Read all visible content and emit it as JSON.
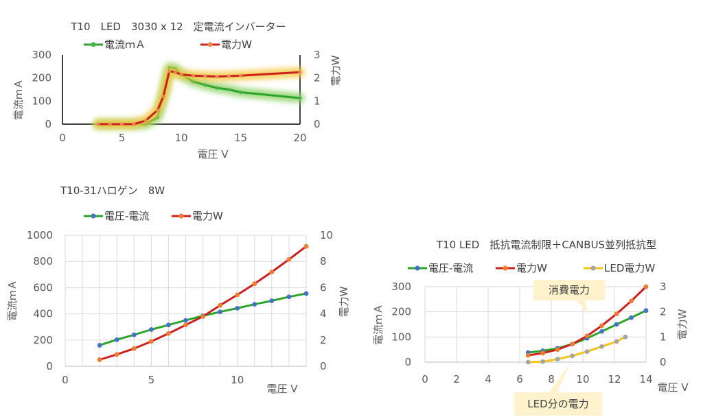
{
  "chart_data": [
    {
      "type": "line",
      "title": "T10　LED　3030 x 12　定電流インバーター",
      "xlabel": "電圧 V",
      "ylabel": "電流ｍＡ",
      "y2label": "電力W",
      "xlim": [
        0,
        20
      ],
      "ylim": [
        0,
        300
      ],
      "y2lim": [
        0,
        3
      ],
      "xticks": [
        "0",
        "5",
        "10",
        "15",
        "20"
      ],
      "yticks": [
        "0",
        "100",
        "200",
        "300"
      ],
      "y2ticks": [
        "0",
        "1",
        "2",
        "3"
      ],
      "grid": false,
      "legend_position": "top",
      "series": [
        {
          "name": "電流ｍＡ",
          "axis": "y",
          "color": "#2aa52a",
          "marker_color": "#4caf50",
          "glow": "#8fd46a",
          "x": [
            3,
            4,
            5,
            6,
            7,
            8,
            8.5,
            9,
            9.5,
            10,
            11,
            12,
            13,
            14,
            15,
            20
          ],
          "y": [
            0,
            0,
            0,
            0,
            0,
            30,
            130,
            245,
            240,
            215,
            185,
            170,
            157,
            150,
            138,
            113
          ]
        },
        {
          "name": "電力W",
          "axis": "y2",
          "color": "#cc1f1f",
          "marker_color": "#e98a4a",
          "glow": "#f5c842",
          "x": [
            3,
            4,
            5,
            6,
            7,
            8,
            8.5,
            9,
            9.5,
            10,
            11,
            12,
            13,
            14,
            15,
            20
          ],
          "y": [
            0,
            0,
            0,
            0,
            0.15,
            0.6,
            1.2,
            2.3,
            2.25,
            2.15,
            2.1,
            2.08,
            2.06,
            2.08,
            2.1,
            2.25
          ]
        }
      ]
    },
    {
      "type": "line",
      "title": "T10-31ハロゲン　8W",
      "xlabel": "電圧 V",
      "ylabel": "電流ｍＡ",
      "y2label": "電力W",
      "xlim": [
        0,
        14
      ],
      "ylim": [
        0,
        1000
      ],
      "y2lim": [
        0,
        10
      ],
      "xticks": [
        "0",
        "5",
        "10"
      ],
      "yticks": [
        "0",
        "200",
        "400",
        "600",
        "800",
        "1000"
      ],
      "y2ticks": [
        "0",
        "2",
        "4",
        "6",
        "8",
        "10"
      ],
      "grid": true,
      "legend_position": "top",
      "series": [
        {
          "name": "電圧-電流",
          "axis": "y",
          "color": "#2aa52a",
          "marker_color": "#4472c4",
          "x": [
            2,
            3,
            4,
            5,
            6,
            7,
            8,
            9,
            10,
            11,
            12,
            13,
            14
          ],
          "y": [
            160,
            203,
            240,
            280,
            315,
            350,
            385,
            415,
            443,
            473,
            500,
            530,
            555
          ]
        },
        {
          "name": "電力W",
          "axis": "y2",
          "color": "#cc1f1f",
          "marker_color": "#ed7d31",
          "x": [
            2,
            3,
            4,
            5,
            6,
            7,
            8,
            9,
            10,
            11,
            12,
            13,
            14
          ],
          "y": [
            0.5,
            0.9,
            1.35,
            1.9,
            2.5,
            3.15,
            3.8,
            4.65,
            5.45,
            6.3,
            7.2,
            8.15,
            9.15
          ]
        }
      ]
    },
    {
      "type": "line",
      "title": "T10 LED　抵抗電流制限＋CANBUS並列抵抗型",
      "xlabel": "電圧 V",
      "ylabel": "電流ｍＡ",
      "y2label": "電力W",
      "xlim": [
        0,
        15
      ],
      "ylim": [
        0,
        300
      ],
      "y2lim": [
        0,
        3
      ],
      "xticks": [
        "0",
        "2",
        "4",
        "6",
        "8",
        "10",
        "12",
        "14"
      ],
      "yticks": [
        "0",
        "100",
        "200",
        "300"
      ],
      "y2ticks": [
        "0",
        "1",
        "2",
        "3"
      ],
      "grid": true,
      "legend_position": "top",
      "annotations": [
        "消費電力",
        "LED分の電力"
      ],
      "series": [
        {
          "name": "電圧-電流",
          "axis": "y",
          "color": "#2aa52a",
          "marker_color": "#4472c4",
          "x": [
            7,
            8,
            9,
            10,
            11,
            12,
            13,
            14,
            15
          ],
          "y": [
            38,
            45,
            55,
            72,
            95,
            122,
            150,
            177,
            205
          ]
        },
        {
          "name": "電力W",
          "axis": "y2",
          "color": "#cc1f1f",
          "marker_color": "#ed7d31",
          "x": [
            7,
            8,
            9,
            10,
            11,
            12,
            13,
            14,
            15
          ],
          "y": [
            0.27,
            0.36,
            0.5,
            0.72,
            1.04,
            1.45,
            1.92,
            2.43,
            3.0
          ]
        },
        {
          "name": "LED電力W",
          "axis": "y2",
          "color": "#f5c518",
          "marker_color": "#a5a5a5",
          "x": [
            7,
            8,
            9,
            10,
            11,
            12,
            13,
            13.6
          ],
          "y": [
            0,
            0.02,
            0.12,
            0.25,
            0.42,
            0.62,
            0.82,
            1.0
          ]
        }
      ]
    }
  ]
}
